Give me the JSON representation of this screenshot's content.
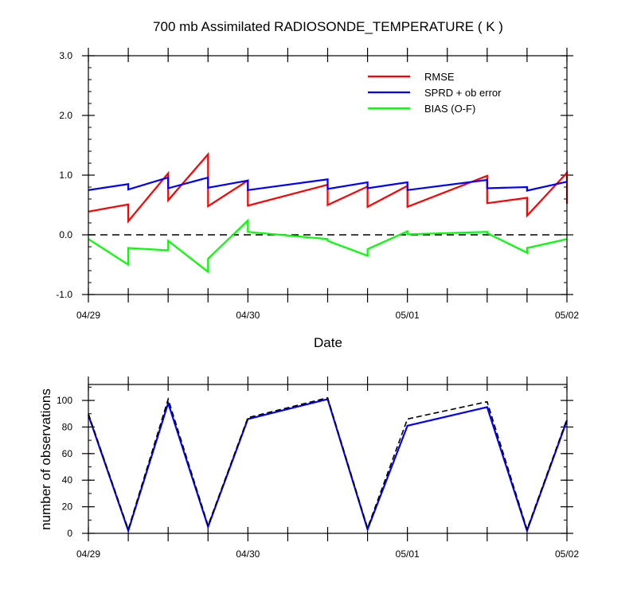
{
  "chart_data": [
    {
      "type": "line",
      "title": "700 mb Assimilated RADIOSONDE_TEMPERATURE ( K )",
      "xlabel": "Date",
      "ylabel": "",
      "x_tick_labels": [
        "04/29",
        "04/30",
        "05/01",
        "05/02"
      ],
      "xlim": [
        0,
        12
      ],
      "ylim": [
        -1.0,
        3.0
      ],
      "y_ticks": [
        -1.0,
        0.0,
        1.0,
        2.0,
        3.0
      ],
      "y_tick_labels": [
        "-1.0",
        "0.0",
        "1.0",
        "2.0",
        "3.0"
      ],
      "zero_line": 0.0,
      "legend_position": "top-right",
      "series": [
        {
          "name": "RMSE",
          "color": "#ff0000",
          "x": [
            0,
            1,
            1,
            2,
            2,
            3,
            3,
            4,
            4,
            6,
            6,
            7,
            7,
            8,
            8,
            10,
            10,
            11,
            11,
            12,
            12
          ],
          "values": [
            0.39,
            0.51,
            0.23,
            1.03,
            0.58,
            1.35,
            0.48,
            0.91,
            0.49,
            0.84,
            0.5,
            0.81,
            0.47,
            0.82,
            0.47,
            0.99,
            0.53,
            0.62,
            0.32,
            1.04,
            0.52
          ]
        },
        {
          "name": "SPRD + ob error",
          "color": "#0000ff",
          "x": [
            0,
            1,
            1,
            2,
            2,
            3,
            3,
            4,
            4,
            6,
            6,
            7,
            7,
            8,
            8,
            10,
            10,
            11,
            11,
            12
          ],
          "values": [
            0.75,
            0.85,
            0.76,
            0.96,
            0.78,
            0.96,
            0.79,
            0.91,
            0.75,
            0.93,
            0.77,
            0.88,
            0.78,
            0.88,
            0.75,
            0.92,
            0.78,
            0.8,
            0.74,
            0.89
          ]
        },
        {
          "name": "BIAS (O-F)",
          "color": "#00ff00",
          "x": [
            0,
            1,
            1,
            2,
            2,
            3,
            3,
            4,
            4,
            6,
            6,
            7,
            7,
            8,
            8,
            10,
            10,
            11,
            11,
            12
          ],
          "values": [
            -0.07,
            -0.5,
            -0.22,
            -0.26,
            -0.1,
            -0.62,
            -0.4,
            0.24,
            0.05,
            -0.07,
            -0.1,
            -0.35,
            -0.24,
            0.06,
            0.01,
            0.05,
            0.03,
            -0.3,
            -0.22,
            -0.07
          ]
        }
      ]
    },
    {
      "type": "line",
      "title": "",
      "xlabel": "",
      "ylabel": "number of observations",
      "x_tick_labels": [
        "04/29",
        "04/30",
        "05/01",
        "05/02"
      ],
      "xlim": [
        0,
        12
      ],
      "ylim": [
        0,
        112
      ],
      "y_ticks": [
        0,
        20,
        40,
        60,
        80,
        100
      ],
      "y_tick_labels": [
        "0",
        "20",
        "40",
        "60",
        "80",
        "100"
      ],
      "series": [
        {
          "color": "#0000ff",
          "style": "solid",
          "x": [
            0,
            1,
            2,
            3,
            4,
            6,
            7,
            8,
            10,
            11,
            12
          ],
          "values": [
            89,
            2,
            98,
            5,
            86,
            101,
            3,
            81,
            95,
            2,
            85
          ]
        },
        {
          "color": "#000000",
          "style": "dashed",
          "x": [
            0,
            1,
            2,
            3,
            4,
            6,
            7,
            8,
            10,
            11,
            12
          ],
          "values": [
            90,
            3,
            101,
            6,
            87,
            102,
            4,
            86,
            99,
            3,
            86
          ]
        }
      ]
    }
  ]
}
